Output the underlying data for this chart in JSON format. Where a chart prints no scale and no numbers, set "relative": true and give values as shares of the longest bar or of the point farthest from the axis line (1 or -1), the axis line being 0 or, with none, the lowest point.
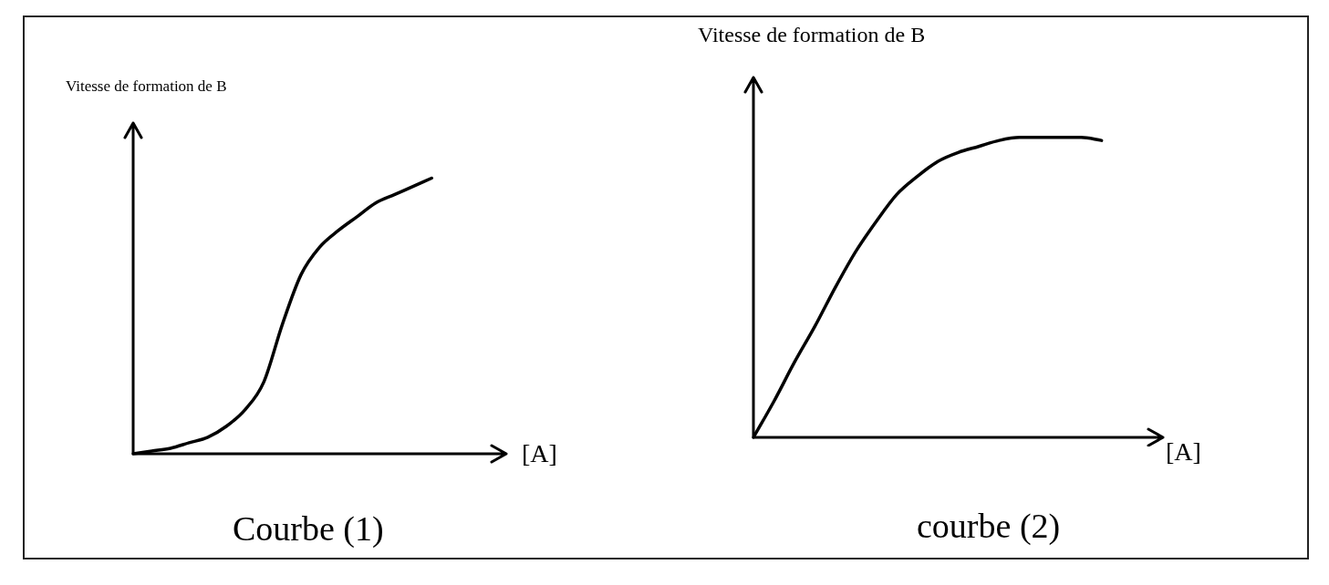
{
  "chart_data": [
    {
      "type": "line",
      "title": "Courbe (1)",
      "xlabel": "[A]",
      "ylabel": "Vitesse de formation de B",
      "relative": true,
      "categories": [
        null,
        null,
        null,
        null,
        null,
        null,
        null,
        null,
        null,
        null,
        null,
        null,
        null,
        null,
        null,
        null,
        null,
        null,
        null,
        null,
        null
      ],
      "series": [
        {
          "color": "#000000",
          "values": [
            0,
            0.01,
            0.02,
            0.04,
            0.06,
            0.1,
            0.16,
            0.26,
            0.47,
            0.65,
            0.75,
            0.81,
            0.86,
            0.91,
            0.94,
            0.97,
            1,
            null,
            null,
            null,
            null
          ]
        }
      ],
      "marker": "none"
    },
    {
      "type": "line",
      "title": "courbe (2)",
      "xlabel": "[A]",
      "ylabel": "Vitesse de formation de B",
      "relative": true,
      "categories": [
        null,
        null,
        null,
        null,
        null,
        null,
        null,
        null,
        null,
        null,
        null,
        null,
        null,
        null,
        null,
        null,
        null,
        null,
        null,
        null,
        null
      ],
      "series": [
        {
          "color": "#000000",
          "values": [
            0,
            0.12,
            0.25,
            0.37,
            0.5,
            0.62,
            0.72,
            0.81,
            0.87,
            0.92,
            0.95,
            0.97,
            0.99,
            1,
            1,
            1,
            1,
            0.99,
            null,
            null,
            null
          ]
        }
      ],
      "marker": "none"
    }
  ]
}
